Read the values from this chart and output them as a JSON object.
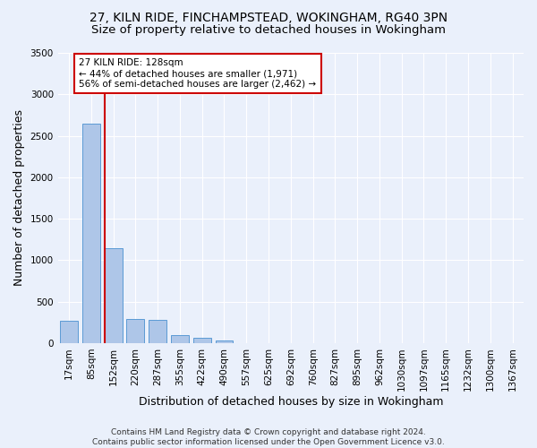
{
  "title_line1": "27, KILN RIDE, FINCHAMPSTEAD, WOKINGHAM, RG40 3PN",
  "title_line2": "Size of property relative to detached houses in Wokingham",
  "xlabel": "Distribution of detached houses by size in Wokingham",
  "ylabel": "Number of detached properties",
  "footnote": "Contains HM Land Registry data © Crown copyright and database right 2024.\nContains public sector information licensed under the Open Government Licence v3.0.",
  "bar_labels": [
    "17sqm",
    "85sqm",
    "152sqm",
    "220sqm",
    "287sqm",
    "355sqm",
    "422sqm",
    "490sqm",
    "557sqm",
    "625sqm",
    "692sqm",
    "760sqm",
    "827sqm",
    "895sqm",
    "962sqm",
    "1030sqm",
    "1097sqm",
    "1165sqm",
    "1232sqm",
    "1300sqm",
    "1367sqm"
  ],
  "bar_values": [
    270,
    2650,
    1140,
    285,
    280,
    95,
    60,
    35,
    0,
    0,
    0,
    0,
    0,
    0,
    0,
    0,
    0,
    0,
    0,
    0,
    0
  ],
  "bar_color": "#aec6e8",
  "bar_edge_color": "#5b9bd5",
  "vline_x_pos": 1.62,
  "vline_color": "#cc0000",
  "annotation_text": "27 KILN RIDE: 128sqm\n← 44% of detached houses are smaller (1,971)\n56% of semi-detached houses are larger (2,462) →",
  "annotation_box_facecolor": "#ffffff",
  "annotation_box_edgecolor": "#cc0000",
  "ylim": [
    0,
    3500
  ],
  "yticks": [
    0,
    500,
    1000,
    1500,
    2000,
    2500,
    3000,
    3500
  ],
  "bg_color": "#eaf0fb",
  "grid_color": "#ffffff",
  "title_fontsize": 10,
  "subtitle_fontsize": 9.5,
  "axis_label_fontsize": 9,
  "tick_fontsize": 7.5,
  "annotation_fontsize": 7.5,
  "footnote_fontsize": 6.5
}
